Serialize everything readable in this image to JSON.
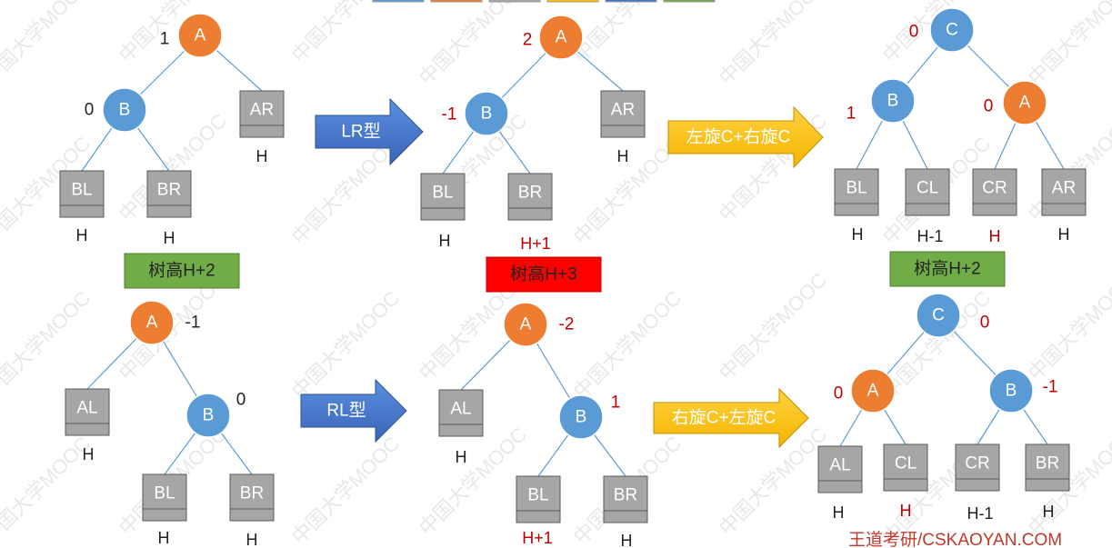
{
  "colors": {
    "orange_node": "#ED7D31",
    "blue_node": "#5B9BD5",
    "subtree_fill": "#A6A6A6",
    "subtree_stroke": "#595959",
    "edge": "#5B9BD5",
    "dark_red": "#C00000",
    "label_green": "#70AD47",
    "label_red": "#FF0000",
    "arrow_blue": "#4472C4",
    "arrow_yellow": "#FFC000"
  },
  "top_row": {
    "before": {
      "nodes": {
        "A": "A",
        "B": "B"
      },
      "bf": {
        "A": "1",
        "B": "0"
      },
      "subtrees": {
        "BL": "BL",
        "BR": "BR",
        "AR": "AR"
      },
      "heights": {
        "BL": "H",
        "BR": "H",
        "AR": "H"
      },
      "label": "树高H+2"
    },
    "arrow": "LR型",
    "middle": {
      "nodes": {
        "A": "A",
        "B": "B"
      },
      "bf": {
        "A": "2",
        "B": "-1"
      },
      "subtrees": {
        "BL": "BL",
        "BR": "BR",
        "AR": "AR"
      },
      "heights": {
        "BL": "H",
        "BR": "H+1",
        "AR": "H"
      },
      "label": "树高H+3"
    },
    "arrow2": "左旋C+右旋C",
    "after": {
      "nodes": {
        "C": "C",
        "B": "B",
        "A": "A"
      },
      "bf": {
        "C": "0",
        "B": "1",
        "A": "0"
      },
      "subtrees": {
        "BL": "BL",
        "CL": "CL",
        "CR": "CR",
        "AR": "AR"
      },
      "heights": {
        "BL": "H",
        "CL": "H-1",
        "CR": "H",
        "AR": "H"
      },
      "label": "树高H+2"
    }
  },
  "bottom_row": {
    "before": {
      "nodes": {
        "A": "A",
        "B": "B"
      },
      "bf": {
        "A": "-1",
        "B": "0"
      },
      "subtrees": {
        "AL": "AL",
        "BL": "BL",
        "BR": "BR"
      },
      "heights": {
        "AL": "H",
        "BL": "H",
        "BR": "H"
      }
    },
    "arrow": "RL型",
    "middle": {
      "nodes": {
        "A": "A",
        "B": "B"
      },
      "bf": {
        "A": "-2",
        "B": "1"
      },
      "subtrees": {
        "AL": "AL",
        "BL": "BL",
        "BR": "BR"
      },
      "heights": {
        "AL": "H",
        "BL": "H+1",
        "BR": "H"
      }
    },
    "arrow2": "右旋C+左旋C",
    "after": {
      "nodes": {
        "C": "C",
        "A": "A",
        "B": "B"
      },
      "bf": {
        "C": "0",
        "A": "0",
        "B": "-1"
      },
      "subtrees": {
        "AL": "AL",
        "CL": "CL",
        "CR": "CR",
        "BR": "BR"
      },
      "heights": {
        "AL": "H",
        "CL": "H",
        "CR": "H-1",
        "BR": "H"
      }
    }
  },
  "watermark": "中国大学MOOC",
  "footer": "王道考研/CSKAOYAN.COM"
}
